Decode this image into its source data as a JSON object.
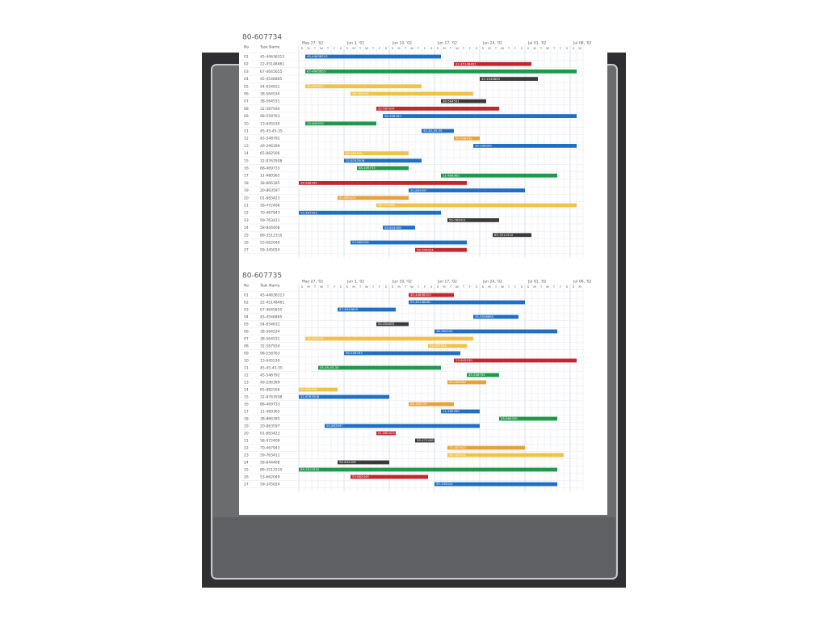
{
  "sheets": [
    {
      "title": "80-607734",
      "header": {
        "no": "No",
        "name": "Task Name"
      },
      "dates": [
        "May 27, '02",
        "Jun 3, '02",
        "Jun 10, '02",
        "Jun 17, '02",
        "Jun 24, '02",
        "Jul 01, '02",
        "Jul 08, '02"
      ],
      "weekdays": [
        "S",
        "M",
        "T",
        "W",
        "T",
        "F",
        "S"
      ],
      "tasks": [
        {
          "no": "01",
          "name": "45-44636313",
          "start": 1,
          "end": 22,
          "color": "#1f6fc4"
        },
        {
          "no": "02",
          "name": "22-45148461",
          "start": 24,
          "end": 36,
          "color": "#c0282e"
        },
        {
          "no": "03",
          "name": "67-4645655",
          "start": 1,
          "end": 43,
          "color": "#1e9a4a"
        },
        {
          "no": "04",
          "name": "45-4546865",
          "start": 28,
          "end": 37,
          "color": "#3a3a3a"
        },
        {
          "no": "05",
          "name": "54-654631",
          "start": 1,
          "end": 19,
          "color": "#f0c24a"
        },
        {
          "no": "06",
          "name": "38-564534",
          "start": 8,
          "end": 27,
          "color": "#f0c24a"
        },
        {
          "no": "07",
          "name": "38-564531",
          "start": 22,
          "end": 29,
          "color": "#3a3a3a"
        },
        {
          "no": "08",
          "name": "32-587934",
          "start": 12,
          "end": 31,
          "color": "#c0282e"
        },
        {
          "no": "09",
          "name": "98-558763",
          "start": 13,
          "end": 43,
          "color": "#1f6fc4"
        },
        {
          "no": "10",
          "name": "13-645530",
          "start": 1,
          "end": 12,
          "color": "#1e9a4a"
        },
        {
          "no": "11",
          "name": "45-45-45-35",
          "start": 19,
          "end": 24,
          "color": "#1f6fc4"
        },
        {
          "no": "12",
          "name": "45-548792",
          "start": 24,
          "end": 28,
          "color": "#e8a23a"
        },
        {
          "no": "13",
          "name": "49-296399",
          "start": 27,
          "end": 43,
          "color": "#1f6fc4"
        },
        {
          "no": "14",
          "name": "65-882506",
          "start": 7,
          "end": 17,
          "color": "#f0c24a"
        },
        {
          "no": "15",
          "name": "32-8763508",
          "start": 7,
          "end": 19,
          "color": "#1f6fc4"
        },
        {
          "no": "16",
          "name": "88-469733",
          "start": 9,
          "end": 17,
          "color": "#1e9a4a"
        },
        {
          "no": "17",
          "name": "11-480365",
          "start": 22,
          "end": 40,
          "color": "#1e9a4a"
        },
        {
          "no": "18",
          "name": "38-866395",
          "start": 0,
          "end": 26,
          "color": "#c0282e"
        },
        {
          "no": "19",
          "name": "20-863597",
          "start": 17,
          "end": 35,
          "color": "#1f6fc4"
        },
        {
          "no": "20",
          "name": "01-883423",
          "start": 6,
          "end": 17,
          "color": "#e8a23a"
        },
        {
          "no": "21",
          "name": "58-472408",
          "start": 12,
          "end": 43,
          "color": "#f0c24a"
        },
        {
          "no": "22",
          "name": "70-467943",
          "start": 0,
          "end": 22,
          "color": "#1f6fc4"
        },
        {
          "no": "23",
          "name": "59-763411",
          "start": 23,
          "end": 31,
          "color": "#3a3a3a"
        },
        {
          "no": "24",
          "name": "58-844408",
          "start": 13,
          "end": 18,
          "color": "#1f6fc4"
        },
        {
          "no": "25",
          "name": "89-3512310",
          "start": 30,
          "end": 36,
          "color": "#3a3a3a"
        },
        {
          "no": "26",
          "name": "53-662049",
          "start": 8,
          "end": 26,
          "color": "#1f6fc4"
        },
        {
          "no": "27",
          "name": "59-345024",
          "start": 18,
          "end": 26,
          "color": "#c0282e"
        }
      ]
    },
    {
      "title": "80-607735",
      "header": {
        "no": "No",
        "name": "Task Name"
      },
      "dates": [
        "May 27, '02",
        "Jun 3, '02",
        "Jun 10, '02",
        "Jun 17, '02",
        "Jun 24, '02",
        "Jul 01, '02",
        "Jul 08, '02"
      ],
      "weekdays": [
        "S",
        "M",
        "T",
        "W",
        "T",
        "F",
        "S"
      ],
      "tasks": [
        {
          "no": "01",
          "name": "45-44636313",
          "start": 17,
          "end": 24,
          "color": "#c0282e"
        },
        {
          "no": "02",
          "name": "22-45148461",
          "start": 17,
          "end": 35,
          "color": "#1f6fc4"
        },
        {
          "no": "03",
          "name": "67-4645655",
          "start": 6,
          "end": 15,
          "color": "#1f6fc4"
        },
        {
          "no": "04",
          "name": "45-4546865",
          "start": 27,
          "end": 34,
          "color": "#1f6fc4"
        },
        {
          "no": "05",
          "name": "54-654631",
          "start": 12,
          "end": 17,
          "color": "#3a3a3a"
        },
        {
          "no": "06",
          "name": "38-564534",
          "start": 21,
          "end": 40,
          "color": "#1f6fc4"
        },
        {
          "no": "07",
          "name": "38-564531",
          "start": 1,
          "end": 27,
          "color": "#f0c24a"
        },
        {
          "no": "08",
          "name": "32-587934",
          "start": 20,
          "end": 26,
          "color": "#f0c24a"
        },
        {
          "no": "09",
          "name": "98-558763",
          "start": 7,
          "end": 25,
          "color": "#1f6fc4"
        },
        {
          "no": "10",
          "name": "13-645530",
          "start": 24,
          "end": 43,
          "color": "#c0282e"
        },
        {
          "no": "11",
          "name": "45-45-45-35",
          "start": 3,
          "end": 22,
          "color": "#1e9a4a"
        },
        {
          "no": "12",
          "name": "45-546792",
          "start": 26,
          "end": 31,
          "color": "#1e9a4a"
        },
        {
          "no": "13",
          "name": "49-296399",
          "start": 23,
          "end": 29,
          "color": "#e8a23a"
        },
        {
          "no": "14",
          "name": "65-882506",
          "start": 0,
          "end": 6,
          "color": "#f0c24a"
        },
        {
          "no": "15",
          "name": "32-8763508",
          "start": 0,
          "end": 14,
          "color": "#1f6fc4"
        },
        {
          "no": "16",
          "name": "88-469733",
          "start": 17,
          "end": 24,
          "color": "#e8a23a"
        },
        {
          "no": "17",
          "name": "11-480365",
          "start": 22,
          "end": 28,
          "color": "#1f6fc4"
        },
        {
          "no": "18",
          "name": "38-866395",
          "start": 31,
          "end": 40,
          "color": "#1e9a4a"
        },
        {
          "no": "19",
          "name": "20-863597",
          "start": 4,
          "end": 28,
          "color": "#1f6fc4"
        },
        {
          "no": "20",
          "name": "01-883423",
          "start": 12,
          "end": 15,
          "color": "#c0282e"
        },
        {
          "no": "21",
          "name": "58-472408",
          "start": 18,
          "end": 21,
          "color": "#3a3a3a"
        },
        {
          "no": "22",
          "name": "70-467943",
          "start": 23,
          "end": 35,
          "color": "#e8a23a"
        },
        {
          "no": "23",
          "name": "59-763411",
          "start": 23,
          "end": 41,
          "color": "#f0c24a"
        },
        {
          "no": "24",
          "name": "58-844408",
          "start": 6,
          "end": 14,
          "color": "#3a3a3a"
        },
        {
          "no": "25",
          "name": "89-3512310",
          "start": 0,
          "end": 40,
          "color": "#1e9a4a"
        },
        {
          "no": "26",
          "name": "53-662049",
          "start": 8,
          "end": 20,
          "color": "#c0282e"
        },
        {
          "no": "27",
          "name": "59-345024",
          "start": 21,
          "end": 40,
          "color": "#1f6fc4"
        }
      ]
    }
  ]
}
